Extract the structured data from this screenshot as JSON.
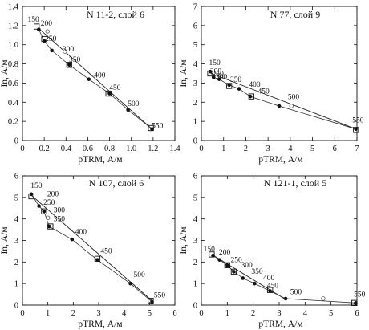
{
  "chart_data": [
    {
      "type": "scatter",
      "title": "N 11-2, слой 6",
      "xlabel": "pTRM, А/м",
      "ylabel": "In, А/м",
      "xlim": [
        0,
        1.4
      ],
      "ylim": [
        0,
        1.4
      ],
      "xticks": [
        0,
        0.2,
        0.4,
        0.6,
        0.8,
        1.0,
        1.2,
        1.4
      ],
      "xtick_labels": [
        "0",
        "0.2",
        "0.4",
        "0.6",
        "0.8",
        "1.0",
        "1.2",
        "1.4"
      ],
      "yticks": [
        0,
        0.2,
        0.4,
        0.6,
        0.8,
        1.0,
        1.2,
        1.4
      ],
      "ytick_labels": [
        "0",
        "0.2",
        "0.4",
        "0.6",
        "0.8",
        "1.0",
        "1.2",
        "1.4"
      ],
      "fit_line": {
        "x": [
          0.15,
          1.19
        ],
        "y": [
          1.17,
          0.12
        ]
      },
      "points": [
        {
          "x": 0.15,
          "y": 1.16,
          "marker": "filled"
        },
        {
          "x": 0.2,
          "y": 1.04,
          "marker": "filled"
        },
        {
          "x": 0.27,
          "y": 0.94,
          "marker": "filled"
        },
        {
          "x": 0.43,
          "y": 0.79,
          "marker": "filled"
        },
        {
          "x": 0.61,
          "y": 0.64,
          "marker": "filled"
        },
        {
          "x": 0.8,
          "y": 0.49,
          "marker": "filled"
        },
        {
          "x": 0.97,
          "y": 0.32,
          "marker": "filled"
        },
        {
          "x": 1.19,
          "y": 0.12,
          "marker": "filled"
        },
        {
          "x": 0.23,
          "y": 1.14,
          "marker": "open"
        },
        {
          "x": 0.39,
          "y": 0.93,
          "marker": "open"
        }
      ],
      "checks": [
        {
          "x": 0.13,
          "y": 1.19
        },
        {
          "x": 0.2,
          "y": 1.06
        },
        {
          "x": 0.43,
          "y": 0.79
        },
        {
          "x": 0.79,
          "y": 0.49
        },
        {
          "x": 1.18,
          "y": 0.13
        }
      ],
      "temperature_labels": [
        {
          "text": "150",
          "x": 0.1,
          "y": 1.24
        },
        {
          "text": "200",
          "x": 0.22,
          "y": 1.2
        },
        {
          "text": "250",
          "x": 0.26,
          "y": 1.04
        },
        {
          "text": "300",
          "x": 0.42,
          "y": 0.93
        },
        {
          "text": "350",
          "x": 0.48,
          "y": 0.82
        },
        {
          "text": "400",
          "x": 0.71,
          "y": 0.66
        },
        {
          "text": "450",
          "x": 0.85,
          "y": 0.53
        },
        {
          "text": "500",
          "x": 1.02,
          "y": 0.36
        },
        {
          "text": "550",
          "x": 1.24,
          "y": 0.13
        }
      ]
    },
    {
      "type": "scatter",
      "title": "N 77, слой 9",
      "xlabel": "pTRM, А/м",
      "ylabel": "In, А/м",
      "xlim": [
        0,
        7
      ],
      "ylim": [
        0,
        7
      ],
      "xticks": [
        0,
        1,
        2,
        3,
        4,
        5,
        6,
        7
      ],
      "xtick_labels": [
        "0",
        "1",
        "2",
        "3",
        "4",
        "5",
        "6",
        "7"
      ],
      "yticks": [
        0,
        1,
        2,
        3,
        4,
        5,
        6,
        7
      ],
      "ytick_labels": [
        "0",
        "1",
        "2",
        "3",
        "4",
        "5",
        "6",
        "7"
      ],
      "fit_line": {
        "x": [
          0.45,
          6.95
        ],
        "y": [
          3.5,
          0.6
        ]
      },
      "points": [
        {
          "x": 0.4,
          "y": 3.6,
          "marker": "filled"
        },
        {
          "x": 0.55,
          "y": 3.3,
          "marker": "filled"
        },
        {
          "x": 0.8,
          "y": 3.2,
          "marker": "filled"
        },
        {
          "x": 1.25,
          "y": 2.9,
          "marker": "filled"
        },
        {
          "x": 1.7,
          "y": 2.7,
          "marker": "filled"
        },
        {
          "x": 2.2,
          "y": 2.3,
          "marker": "filled"
        },
        {
          "x": 3.5,
          "y": 1.8,
          "marker": "filled"
        },
        {
          "x": 6.95,
          "y": 0.6,
          "marker": "filled"
        },
        {
          "x": 4.05,
          "y": 1.8,
          "marker": "open"
        }
      ],
      "checks": [
        {
          "x": 0.4,
          "y": 3.5
        },
        {
          "x": 1.25,
          "y": 2.85
        },
        {
          "x": 2.25,
          "y": 2.3
        },
        {
          "x": 6.95,
          "y": 0.55
        }
      ],
      "temperature_labels": [
        {
          "text": "150",
          "x": 0.6,
          "y": 3.95
        },
        {
          "text": "200",
          "x": 0.65,
          "y": 3.5
        },
        {
          "text": "250",
          "x": 0.75,
          "y": 3.35
        },
        {
          "text": "300",
          "x": 0.9,
          "y": 3.2
        },
        {
          "text": "350",
          "x": 1.55,
          "y": 3.05
        },
        {
          "text": "400",
          "x": 2.4,
          "y": 2.8
        },
        {
          "text": "450",
          "x": 2.8,
          "y": 2.45
        },
        {
          "text": "500",
          "x": 4.15,
          "y": 2.15
        },
        {
          "text": "550",
          "x": 7.05,
          "y": 0.95
        }
      ]
    },
    {
      "type": "scatter",
      "title": "N 107, слой 6",
      "xlabel": "pTRM, А/м",
      "ylabel": "In, А/м",
      "xlim": [
        0,
        6
      ],
      "ylim": [
        0,
        6
      ],
      "xticks": [
        0,
        1,
        2,
        3,
        4,
        5,
        6
      ],
      "xtick_labels": [
        "0",
        "1",
        "2",
        "3",
        "4",
        "5",
        "6"
      ],
      "yticks": [
        0,
        1,
        2,
        3,
        4,
        5,
        6
      ],
      "ytick_labels": [
        "0",
        "1",
        "2",
        "3",
        "4",
        "5",
        "6"
      ],
      "fit_line": {
        "x": [
          0.35,
          5.15
        ],
        "y": [
          5.1,
          0.15
        ]
      },
      "points": [
        {
          "x": 0.35,
          "y": 5.15,
          "marker": "filled"
        },
        {
          "x": 0.65,
          "y": 4.6,
          "marker": "filled"
        },
        {
          "x": 0.85,
          "y": 4.35,
          "marker": "filled"
        },
        {
          "x": 1.05,
          "y": 3.65,
          "marker": "filled"
        },
        {
          "x": 1.95,
          "y": 3.05,
          "marker": "filled"
        },
        {
          "x": 2.95,
          "y": 2.1,
          "marker": "filled"
        },
        {
          "x": 4.25,
          "y": 1.0,
          "marker": "filled"
        },
        {
          "x": 5.1,
          "y": 0.15,
          "marker": "filled"
        },
        {
          "x": 1.0,
          "y": 4.05,
          "marker": "open"
        }
      ],
      "checks": [
        {
          "x": 0.35,
          "y": 5.05
        },
        {
          "x": 0.85,
          "y": 4.35
        },
        {
          "x": 1.1,
          "y": 3.65
        },
        {
          "x": 2.95,
          "y": 2.15
        },
        {
          "x": 5.05,
          "y": 0.2
        }
      ],
      "temperature_labels": [
        {
          "text": "150",
          "x": 0.55,
          "y": 5.45
        },
        {
          "text": "200",
          "x": 1.2,
          "y": 5.05
        },
        {
          "text": "250",
          "x": 1.05,
          "y": 4.65
        },
        {
          "text": "300",
          "x": 1.45,
          "y": 4.3
        },
        {
          "text": "350",
          "x": 1.45,
          "y": 3.9
        },
        {
          "text": "400",
          "x": 2.3,
          "y": 3.3
        },
        {
          "text": "450",
          "x": 3.3,
          "y": 2.4
        },
        {
          "text": "500",
          "x": 4.6,
          "y": 1.3
        },
        {
          "text": "550",
          "x": 5.4,
          "y": 0.35
        }
      ]
    },
    {
      "type": "scatter",
      "title": "N 121-1, слой 5",
      "xlabel": "pTRM, А/м",
      "ylabel": "In, А/м",
      "xlim": [
        0,
        6
      ],
      "ylim": [
        0,
        6
      ],
      "xticks": [
        0,
        1,
        2,
        3,
        4,
        5,
        6
      ],
      "xtick_labels": [
        "0",
        "1",
        "2",
        "3",
        "4",
        "5",
        "6"
      ],
      "yticks": [
        0,
        1,
        2,
        3,
        4,
        5,
        6
      ],
      "ytick_labels": [
        "0",
        "1",
        "2",
        "3",
        "4",
        "5",
        "6"
      ],
      "fit_line": {
        "x": [
          0.4,
          3.2
        ],
        "y": [
          2.35,
          0.3
        ]
      },
      "points": [
        {
          "x": 0.45,
          "y": 2.3,
          "marker": "filled"
        },
        {
          "x": 0.7,
          "y": 2.1,
          "marker": "filled"
        },
        {
          "x": 1.0,
          "y": 1.85,
          "marker": "filled"
        },
        {
          "x": 1.25,
          "y": 1.55,
          "marker": "filled"
        },
        {
          "x": 1.6,
          "y": 1.25,
          "marker": "filled"
        },
        {
          "x": 2.05,
          "y": 1.0,
          "marker": "filled"
        },
        {
          "x": 2.65,
          "y": 0.65,
          "marker": "filled"
        },
        {
          "x": 3.25,
          "y": 0.3,
          "marker": "filled"
        },
        {
          "x": 5.95,
          "y": 0.1,
          "marker": "filled"
        },
        {
          "x": 4.7,
          "y": 0.3,
          "marker": "open"
        }
      ],
      "checks": [
        {
          "x": 0.4,
          "y": 2.35
        },
        {
          "x": 1.0,
          "y": 1.85
        },
        {
          "x": 1.25,
          "y": 1.55
        },
        {
          "x": 2.65,
          "y": 0.7
        },
        {
          "x": 5.9,
          "y": 0.1
        }
      ],
      "temperature_labels": [
        {
          "text": "150",
          "x": 0.3,
          "y": 2.5
        },
        {
          "text": "200",
          "x": 0.9,
          "y": 2.35
        },
        {
          "text": "250",
          "x": 1.35,
          "y": 2.0
        },
        {
          "text": "300",
          "x": 1.75,
          "y": 1.75
        },
        {
          "text": "350",
          "x": 2.15,
          "y": 1.45
        },
        {
          "text": "400",
          "x": 2.6,
          "y": 1.15
        },
        {
          "text": "450",
          "x": 2.75,
          "y": 0.8
        },
        {
          "text": "500",
          "x": 3.65,
          "y": 0.5
        },
        {
          "text": "550",
          "x": 6.1,
          "y": 0.4
        }
      ]
    }
  ]
}
